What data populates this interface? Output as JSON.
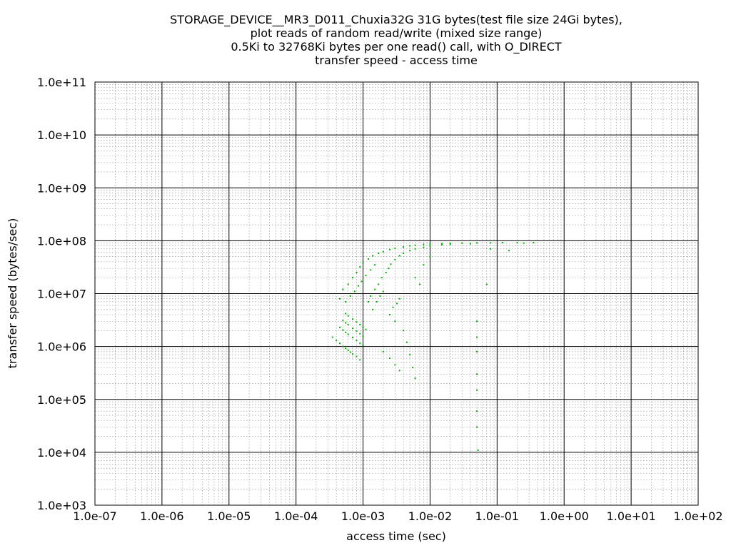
{
  "chart_data": {
    "type": "scatter",
    "title_lines": [
      "STORAGE_DEVICE__MR3_D011_Chuxia32G 31G bytes(test file size 24Gi bytes),",
      "plot reads of random read/write (mixed size range)",
      "0.5Ki to 32768Ki bytes per one read() call, with O_DIRECT",
      "transfer speed - access time"
    ],
    "xlabel": "access time (sec)",
    "ylabel": "transfer speed (bytes/sec)",
    "x_scale": "log",
    "y_scale": "log",
    "xlim": [
      1e-07,
      100
    ],
    "ylim": [
      1000,
      100000000000.0
    ],
    "x_ticks": [
      {
        "value": 1e-07,
        "label": "1.0e-07"
      },
      {
        "value": 1e-06,
        "label": "1.0e-06"
      },
      {
        "value": 1e-05,
        "label": "1.0e-05"
      },
      {
        "value": 0.0001,
        "label": "1.0e-04"
      },
      {
        "value": 0.001,
        "label": "1.0e-03"
      },
      {
        "value": 0.01,
        "label": "1.0e-02"
      },
      {
        "value": 0.1,
        "label": "1.0e-01"
      },
      {
        "value": 1,
        "label": "1.0e+00"
      },
      {
        "value": 10,
        "label": "1.0e+01"
      },
      {
        "value": 100,
        "label": "1.0e+02"
      }
    ],
    "y_ticks": [
      {
        "value": 1000,
        "label": "1.0e+03"
      },
      {
        "value": 10000,
        "label": "1.0e+04"
      },
      {
        "value": 100000,
        "label": "1.0e+05"
      },
      {
        "value": 1000000,
        "label": "1.0e+06"
      },
      {
        "value": 10000000,
        "label": "1.0e+07"
      },
      {
        "value": 100000000,
        "label": "1.0e+08"
      },
      {
        "value": 1000000000,
        "label": "1.0e+09"
      },
      {
        "value": 10000000000,
        "label": "1.0e+10"
      },
      {
        "value": 100000000000,
        "label": "1.0e+11"
      }
    ],
    "grid": true,
    "legend": "none",
    "point_color": "#00b000",
    "series": [
      {
        "points": [
          [
            0.00035,
            1500000
          ],
          [
            0.0004,
            1300000
          ],
          [
            0.00045,
            1150000
          ],
          [
            0.0005,
            1000000
          ],
          [
            0.00055,
            920000
          ],
          [
            0.0006,
            850000
          ],
          [
            0.00065,
            780000
          ],
          [
            0.0007,
            720000
          ],
          [
            0.0008,
            650000
          ],
          [
            0.0009,
            560000
          ],
          [
            0.00045,
            2300000
          ],
          [
            0.0005,
            2050000
          ],
          [
            0.00055,
            1850000
          ],
          [
            0.0006,
            1700000
          ],
          [
            0.0007,
            1480000
          ],
          [
            0.0008,
            1300000
          ],
          [
            0.0009,
            1150000
          ],
          [
            0.001,
            1050000
          ],
          [
            0.0005,
            3100000
          ],
          [
            0.00055,
            2800000
          ],
          [
            0.0006,
            2600000
          ],
          [
            0.0007,
            2200000
          ],
          [
            0.0008,
            1950000
          ],
          [
            0.0009,
            1750000
          ],
          [
            0.001,
            1550000
          ],
          [
            0.00055,
            4200000
          ],
          [
            0.0006,
            3800000
          ],
          [
            0.0007,
            3300000
          ],
          [
            0.0008,
            2900000
          ],
          [
            0.0009,
            2600000
          ],
          [
            0.001,
            2300000
          ],
          [
            0.0011,
            2100000
          ],
          [
            0.00045,
            8000000
          ],
          [
            0.0005,
            12000000
          ],
          [
            0.00055,
            7000000
          ],
          [
            0.0006,
            15000000
          ],
          [
            0.00065,
            9000000
          ],
          [
            0.0007,
            20000000
          ],
          [
            0.00075,
            11000000
          ],
          [
            0.0008,
            25000000
          ],
          [
            0.00085,
            14000000
          ],
          [
            0.0009,
            32000000
          ],
          [
            0.00095,
            17000000
          ],
          [
            0.001,
            38000000
          ],
          [
            0.0011,
            22000000
          ],
          [
            0.0012,
            45000000
          ],
          [
            0.0013,
            28000000
          ],
          [
            0.0014,
            52000000
          ],
          [
            0.0015,
            35000000
          ],
          [
            0.0017,
            58000000
          ],
          [
            0.002,
            62000000
          ],
          [
            0.0025,
            68000000
          ],
          [
            0.003,
            72000000
          ],
          [
            0.004,
            76000000
          ],
          [
            0.005,
            80000000
          ],
          [
            0.006,
            82000000
          ],
          [
            0.008,
            85000000
          ],
          [
            0.01,
            87000000
          ],
          [
            0.015,
            88000000
          ],
          [
            0.02,
            89000000
          ],
          [
            0.03,
            90000000
          ],
          [
            0.05,
            91000000
          ],
          [
            0.08,
            91000000
          ],
          [
            0.12,
            92000000
          ],
          [
            0.2,
            92000000
          ],
          [
            0.35,
            92000000
          ],
          [
            0.0012,
            7000000
          ],
          [
            0.0013,
            9000000
          ],
          [
            0.0014,
            5000000
          ],
          [
            0.0015,
            12000000
          ],
          [
            0.0016,
            7000000
          ],
          [
            0.0017,
            15000000
          ],
          [
            0.0018,
            9000000
          ],
          [
            0.0019,
            20000000
          ],
          [
            0.002,
            11000000
          ],
          [
            0.0022,
            25000000
          ],
          [
            0.0024,
            30000000
          ],
          [
            0.0026,
            36000000
          ],
          [
            0.003,
            44000000
          ],
          [
            0.0035,
            52000000
          ],
          [
            0.004,
            58000000
          ],
          [
            0.005,
            65000000
          ],
          [
            0.006,
            70000000
          ],
          [
            0.008,
            75000000
          ],
          [
            0.01,
            80000000
          ],
          [
            0.015,
            84000000
          ],
          [
            0.02,
            86000000
          ],
          [
            0.04,
            88000000
          ],
          [
            0.0025,
            4000000
          ],
          [
            0.0028,
            5500000
          ],
          [
            0.003,
            3000000
          ],
          [
            0.0032,
            6500000
          ],
          [
            0.0035,
            8000000
          ],
          [
            0.004,
            2000000
          ],
          [
            0.0045,
            1200000
          ],
          [
            0.005,
            700000
          ],
          [
            0.0055,
            400000
          ],
          [
            0.006,
            250000
          ],
          [
            0.006,
            20000000
          ],
          [
            0.007,
            15000000
          ],
          [
            0.008,
            35000000
          ],
          [
            0.01,
            50000000
          ],
          [
            0.002,
            800000
          ],
          [
            0.0025,
            600000
          ],
          [
            0.003,
            450000
          ],
          [
            0.0035,
            350000
          ],
          [
            0.05,
            3000000
          ],
          [
            0.05,
            1500000
          ],
          [
            0.05,
            800000
          ],
          [
            0.05,
            300000
          ],
          [
            0.05,
            150000
          ],
          [
            0.05,
            60000
          ],
          [
            0.05,
            30000
          ],
          [
            0.052,
            11000
          ],
          [
            0.07,
            15000000
          ],
          [
            0.15,
            65000000
          ],
          [
            0.08,
            70000000
          ],
          [
            0.25,
            90000000
          ]
        ]
      }
    ]
  }
}
